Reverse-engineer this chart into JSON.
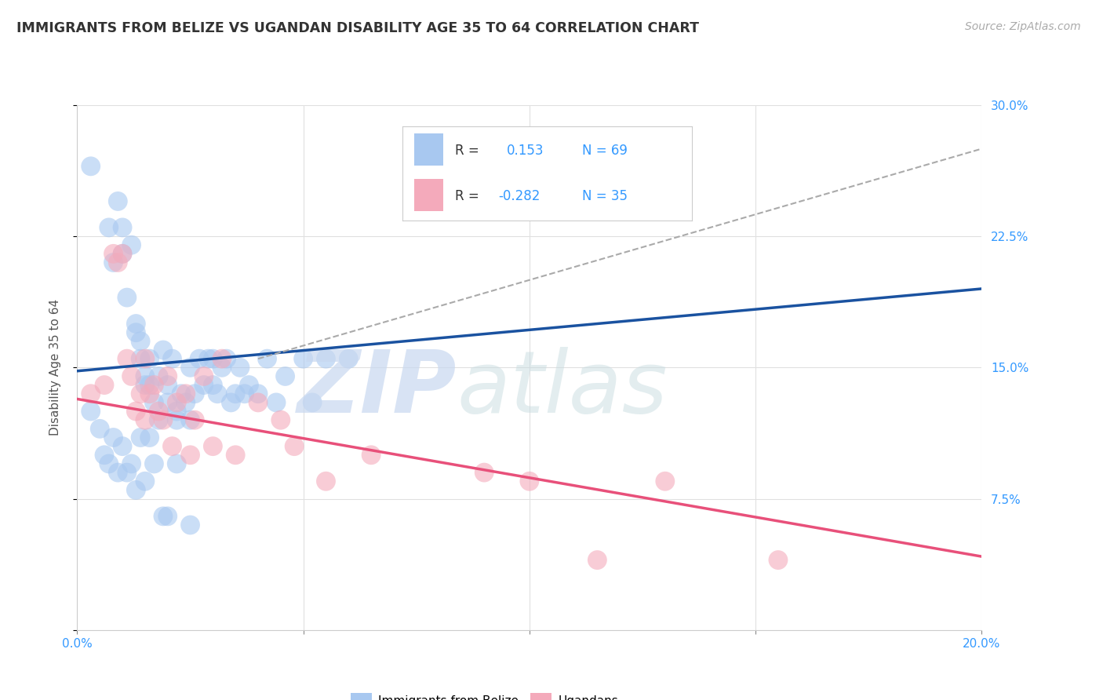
{
  "title": "IMMIGRANTS FROM BELIZE VS UGANDAN DISABILITY AGE 35 TO 64 CORRELATION CHART",
  "source": "Source: ZipAtlas.com",
  "ylabel": "Disability Age 35 to 64",
  "xlim": [
    0.0,
    0.2
  ],
  "ylim": [
    0.0,
    0.3
  ],
  "r_blue": 0.153,
  "n_blue": 69,
  "r_pink": -0.282,
  "n_pink": 35,
  "blue_color": "#a8c8f0",
  "pink_color": "#f4aabb",
  "blue_line_color": "#1a52a0",
  "pink_line_color": "#e8507a",
  "gray_line_color": "#aaaaaa",
  "background_color": "#ffffff",
  "grid_color": "#e0e0e0",
  "blue_line_x": [
    0.0,
    0.2
  ],
  "blue_line_y": [
    0.148,
    0.195
  ],
  "pink_line_x": [
    0.0,
    0.2
  ],
  "pink_line_y": [
    0.132,
    0.042
  ],
  "gray_line_x": [
    0.04,
    0.2
  ],
  "gray_line_y": [
    0.155,
    0.275
  ],
  "blue_scatter_x": [
    0.003,
    0.007,
    0.008,
    0.009,
    0.01,
    0.01,
    0.011,
    0.012,
    0.013,
    0.013,
    0.014,
    0.014,
    0.015,
    0.015,
    0.016,
    0.016,
    0.017,
    0.018,
    0.018,
    0.019,
    0.02,
    0.02,
    0.021,
    0.022,
    0.022,
    0.023,
    0.024,
    0.025,
    0.025,
    0.026,
    0.027,
    0.028,
    0.029,
    0.03,
    0.03,
    0.031,
    0.032,
    0.033,
    0.034,
    0.035,
    0.036,
    0.037,
    0.038,
    0.04,
    0.042,
    0.044,
    0.046,
    0.05,
    0.052,
    0.055,
    0.003,
    0.005,
    0.006,
    0.007,
    0.008,
    0.009,
    0.01,
    0.011,
    0.012,
    0.013,
    0.014,
    0.015,
    0.016,
    0.017,
    0.019,
    0.02,
    0.022,
    0.025,
    0.06
  ],
  "blue_scatter_y": [
    0.265,
    0.23,
    0.21,
    0.245,
    0.23,
    0.215,
    0.19,
    0.22,
    0.175,
    0.17,
    0.155,
    0.165,
    0.145,
    0.14,
    0.155,
    0.14,
    0.13,
    0.145,
    0.12,
    0.16,
    0.13,
    0.14,
    0.155,
    0.125,
    0.12,
    0.135,
    0.13,
    0.15,
    0.12,
    0.135,
    0.155,
    0.14,
    0.155,
    0.155,
    0.14,
    0.135,
    0.15,
    0.155,
    0.13,
    0.135,
    0.15,
    0.135,
    0.14,
    0.135,
    0.155,
    0.13,
    0.145,
    0.155,
    0.13,
    0.155,
    0.125,
    0.115,
    0.1,
    0.095,
    0.11,
    0.09,
    0.105,
    0.09,
    0.095,
    0.08,
    0.11,
    0.085,
    0.11,
    0.095,
    0.065,
    0.065,
    0.095,
    0.06,
    0.155
  ],
  "pink_scatter_x": [
    0.003,
    0.006,
    0.008,
    0.009,
    0.01,
    0.011,
    0.012,
    0.013,
    0.014,
    0.015,
    0.015,
    0.016,
    0.017,
    0.018,
    0.019,
    0.02,
    0.021,
    0.022,
    0.024,
    0.025,
    0.026,
    0.028,
    0.03,
    0.032,
    0.035,
    0.04,
    0.045,
    0.048,
    0.055,
    0.065,
    0.09,
    0.1,
    0.115,
    0.13,
    0.155
  ],
  "pink_scatter_y": [
    0.135,
    0.14,
    0.215,
    0.21,
    0.215,
    0.155,
    0.145,
    0.125,
    0.135,
    0.12,
    0.155,
    0.135,
    0.14,
    0.125,
    0.12,
    0.145,
    0.105,
    0.13,
    0.135,
    0.1,
    0.12,
    0.145,
    0.105,
    0.155,
    0.1,
    0.13,
    0.12,
    0.105,
    0.085,
    0.1,
    0.09,
    0.085,
    0.04,
    0.085,
    0.04
  ]
}
